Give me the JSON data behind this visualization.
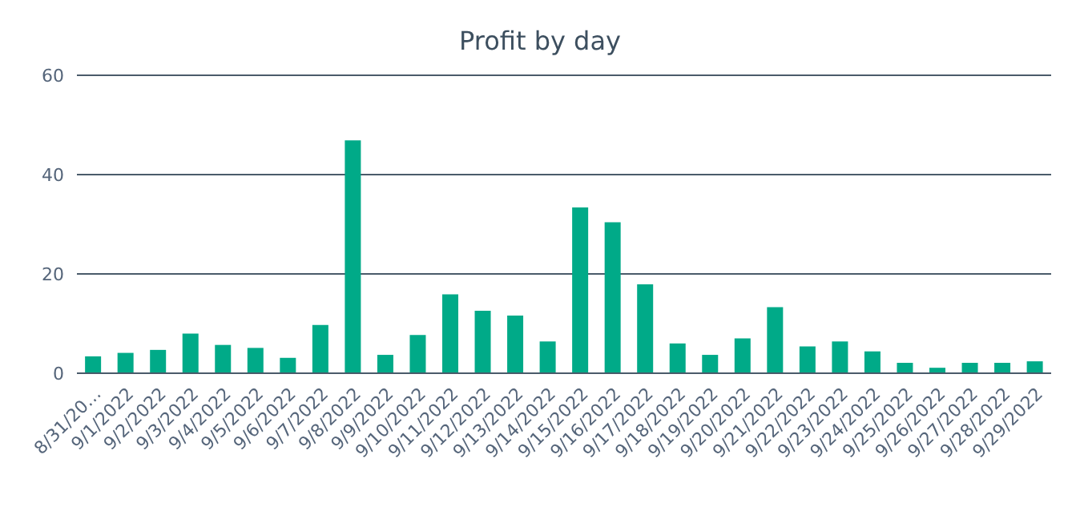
{
  "chart_data": {
    "type": "bar",
    "title": "Profit by day",
    "categories": [
      "8/31/20…",
      "9/1/2022",
      "9/2/2022",
      "9/3/2022",
      "9/4/2022",
      "9/5/2022",
      "9/6/2022",
      "9/7/2022",
      "9/8/2022",
      "9/9/2022",
      "9/10/2022",
      "9/11/2022",
      "9/12/2022",
      "9/13/2022",
      "9/14/2022",
      "9/15/2022",
      "9/16/2022",
      "9/17/2022",
      "9/18/2022",
      "9/19/2022",
      "9/20/2022",
      "9/21/2022",
      "9/22/2022",
      "9/23/2022",
      "9/24/2022",
      "9/25/2022",
      "9/26/2022",
      "9/27/2022",
      "9/28/2022",
      "9/29/2022"
    ],
    "values": [
      3.4,
      4.1,
      4.7,
      8.0,
      5.7,
      5.1,
      3.1,
      9.7,
      46.9,
      3.7,
      7.7,
      15.9,
      12.6,
      11.6,
      6.4,
      33.4,
      30.4,
      17.9,
      6.0,
      3.7,
      7.0,
      13.3,
      5.4,
      6.4,
      4.4,
      2.1,
      1.1,
      2.1,
      2.1,
      2.4
    ],
    "color": "#00aa88",
    "ylim": [
      0,
      60
    ],
    "yticks": [
      0,
      20,
      40,
      60
    ],
    "grid": "y",
    "legend": false
  }
}
